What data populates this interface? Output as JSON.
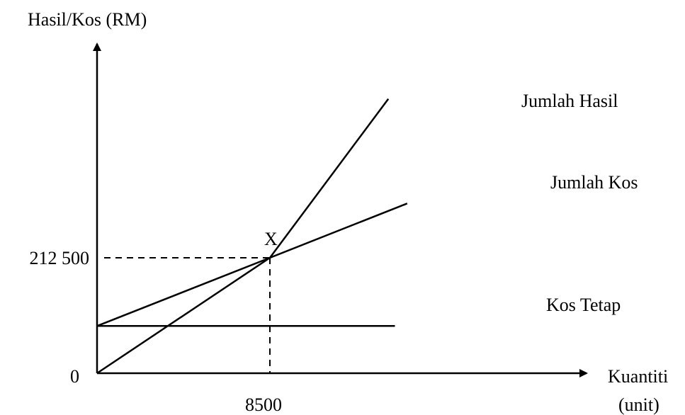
{
  "chart_data": {
    "type": "line",
    "ylabel": "Hasil/Kos (RM)",
    "xlabel": [
      "Kuantiti",
      "(unit)"
    ],
    "origin_label": "0",
    "break_even": {
      "x": 8500,
      "y": 212500,
      "label": "X",
      "x_tick": "8500",
      "y_tick": "212 500"
    },
    "series": [
      {
        "name": "Jumlah Hasil",
        "x": [
          0,
          8500,
          14325
        ],
        "y": [
          0,
          212500,
          505000
        ]
      },
      {
        "name": "Jumlah Kos",
        "x": [
          0,
          8500,
          15250
        ],
        "y": [
          87000,
          212500,
          312500
        ]
      },
      {
        "name": "Kos Tetap",
        "x": [
          0,
          14650
        ],
        "y": [
          87000,
          87000
        ]
      }
    ]
  }
}
